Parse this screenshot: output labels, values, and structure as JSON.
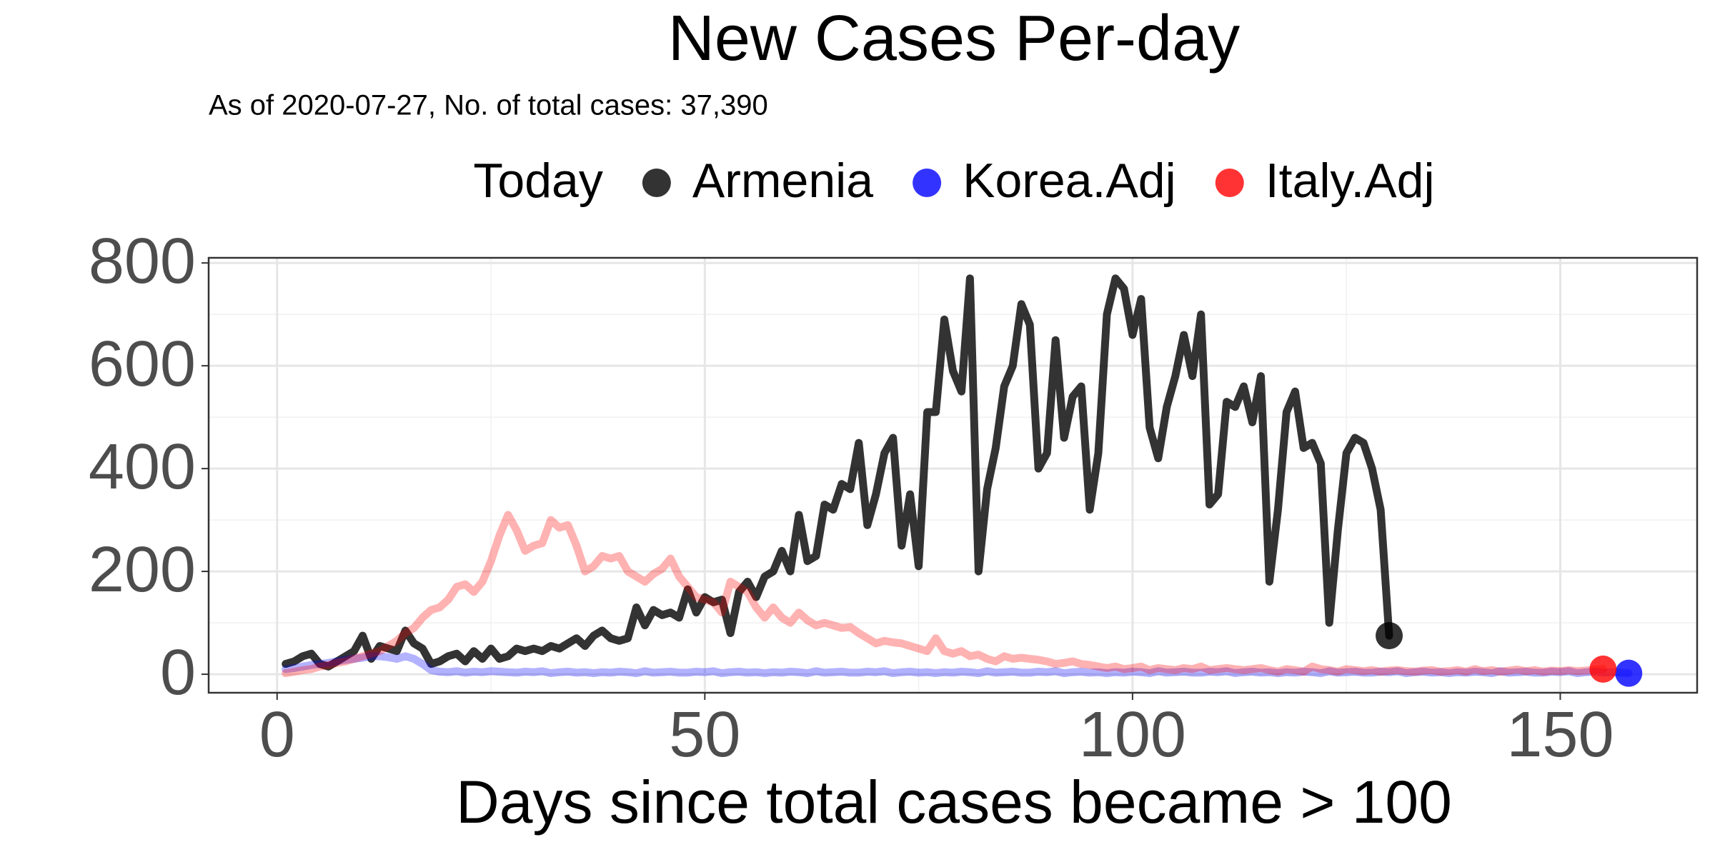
{
  "chart_data": {
    "type": "line",
    "title": "New Cases Per-day",
    "subtitle": "As of 2020-07-27, No. of total cases: 37,390",
    "legend_title": "Today",
    "x_label": "Days since total cases became > 100",
    "xlim": [
      -8,
      166
    ],
    "ylim": [
      -36,
      810
    ],
    "xticks": [
      0,
      50,
      100,
      150
    ],
    "yticks": [
      0,
      200,
      400,
      600,
      800
    ],
    "grid": true,
    "minor_grid": true,
    "legend_position": "top",
    "line_width": 11,
    "point_opacity": 0.8,
    "x": [
      1,
      2,
      3,
      4,
      5,
      6,
      7,
      8,
      9,
      10,
      11,
      12,
      13,
      14,
      15,
      16,
      17,
      18,
      19,
      20,
      21,
      22,
      23,
      24,
      25,
      26,
      27,
      28,
      29,
      30,
      31,
      32,
      33,
      34,
      35,
      36,
      37,
      38,
      39,
      40,
      41,
      42,
      43,
      44,
      45,
      46,
      47,
      48,
      49,
      50,
      51,
      52,
      53,
      54,
      55,
      56,
      57,
      58,
      59,
      60,
      61,
      62,
      63,
      64,
      65,
      66,
      67,
      68,
      69,
      70,
      71,
      72,
      73,
      74,
      75,
      76,
      77,
      78,
      79,
      80,
      81,
      82,
      83,
      84,
      85,
      86,
      87,
      88,
      89,
      90,
      91,
      92,
      93,
      94,
      95,
      96,
      97,
      98,
      99,
      100,
      101,
      102,
      103,
      104,
      105,
      106,
      107,
      108,
      109,
      110,
      111,
      112,
      113,
      114,
      115,
      116,
      117,
      118,
      119,
      120,
      121,
      122,
      123,
      124,
      125,
      126,
      127,
      128,
      129,
      130,
      131,
      132,
      133,
      134,
      135,
      136,
      137,
      138,
      139,
      140,
      141,
      142,
      143,
      144,
      145,
      146,
      147,
      148,
      149,
      150,
      151,
      152,
      153,
      154,
      155,
      156,
      157,
      158
    ],
    "series": [
      {
        "name": "Armenia",
        "color": "#000000",
        "line_opacity": 0.8,
        "values": [
          20,
          25,
          35,
          40,
          20,
          15,
          25,
          35,
          45,
          75,
          30,
          55,
          50,
          45,
          85,
          60,
          50,
          20,
          25,
          35,
          40,
          25,
          45,
          30,
          50,
          30,
          35,
          50,
          45,
          50,
          45,
          55,
          50,
          60,
          70,
          55,
          75,
          85,
          70,
          65,
          70,
          130,
          95,
          125,
          115,
          120,
          110,
          165,
          120,
          150,
          140,
          145,
          80,
          160,
          180,
          150,
          190,
          200,
          240,
          200,
          310,
          220,
          230,
          330,
          320,
          370,
          360,
          450,
          290,
          350,
          430,
          460,
          250,
          350,
          210,
          510,
          510,
          690,
          590,
          550,
          770,
          200,
          360,
          440,
          560,
          600,
          720,
          680,
          400,
          430,
          650,
          460,
          540,
          560,
          320,
          430,
          700,
          770,
          750,
          660,
          730,
          480,
          420,
          520,
          580,
          660,
          580,
          700,
          330,
          350,
          530,
          520,
          560,
          490,
          580,
          180,
          320,
          510,
          550,
          440,
          450,
          410,
          100,
          280,
          430,
          460,
          450,
          400,
          320,
          75,
          null,
          null,
          null,
          null,
          null,
          null,
          null,
          null,
          null,
          null,
          null,
          null,
          null,
          null,
          null,
          null,
          null,
          null,
          null,
          null,
          null,
          null,
          null,
          null,
          null,
          null,
          null,
          null
        ]
      },
      {
        "name": "Korea.Adj",
        "color": "#0000ff",
        "line_opacity": 0.3,
        "values": [
          10,
          12,
          15,
          18,
          20,
          22,
          25,
          28,
          30,
          32,
          35,
          35,
          33,
          30,
          35,
          30,
          20,
          8,
          5,
          4,
          6,
          3,
          5,
          4,
          6,
          5,
          4,
          3,
          5,
          4,
          6,
          2,
          4,
          5,
          3,
          4,
          2,
          4,
          3,
          5,
          4,
          2,
          6,
          3,
          4,
          5,
          3,
          3,
          5,
          4,
          6,
          2,
          4,
          5,
          3,
          4,
          2,
          4,
          3,
          5,
          4,
          2,
          6,
          3,
          4,
          5,
          3,
          3,
          5,
          4,
          6,
          2,
          4,
          5,
          3,
          4,
          2,
          4,
          3,
          5,
          4,
          2,
          6,
          3,
          4,
          5,
          3,
          3,
          5,
          4,
          6,
          2,
          4,
          5,
          3,
          4,
          2,
          4,
          3,
          5,
          4,
          2,
          6,
          3,
          4,
          5,
          3,
          3,
          5,
          4,
          6,
          2,
          4,
          5,
          3,
          4,
          2,
          4,
          3,
          5,
          4,
          2,
          6,
          3,
          4,
          5,
          3,
          3,
          5,
          4,
          6,
          2,
          4,
          5,
          3,
          4,
          2,
          4,
          3,
          5,
          4,
          2,
          6,
          3,
          4,
          5,
          3,
          3,
          5,
          4,
          6,
          2,
          4,
          5,
          3,
          4,
          3,
          2
        ]
      },
      {
        "name": "Italy.Adj",
        "color": "#ff0000",
        "line_opacity": 0.3,
        "values": [
          2,
          5,
          8,
          10,
          15,
          18,
          22,
          25,
          30,
          35,
          40,
          45,
          55,
          65,
          80,
          90,
          110,
          125,
          130,
          145,
          170,
          175,
          160,
          180,
          220,
          270,
          310,
          280,
          240,
          250,
          255,
          300,
          285,
          290,
          250,
          200,
          210,
          230,
          225,
          230,
          200,
          190,
          180,
          195,
          205,
          225,
          190,
          170,
          150,
          145,
          140,
          120,
          180,
          170,
          160,
          130,
          110,
          130,
          110,
          100,
          120,
          105,
          95,
          100,
          95,
          90,
          92,
          80,
          70,
          60,
          65,
          62,
          60,
          55,
          50,
          45,
          70,
          45,
          40,
          45,
          35,
          38,
          30,
          25,
          35,
          30,
          32,
          30,
          28,
          25,
          20,
          22,
          25,
          20,
          18,
          15,
          12,
          15,
          10,
          12,
          15,
          8,
          12,
          10,
          8,
          12,
          10,
          15,
          8,
          10,
          12,
          10,
          8,
          10,
          12,
          8,
          5,
          10,
          8,
          5,
          15,
          10,
          8,
          5,
          10,
          8,
          6,
          8,
          5,
          7,
          8,
          6,
          5,
          7,
          8,
          5,
          6,
          8,
          5,
          10,
          6,
          8,
          5,
          7,
          9,
          6,
          8,
          5,
          7,
          6,
          8,
          6,
          7,
          9,
          10,
          null,
          null,
          null
        ]
      }
    ]
  }
}
